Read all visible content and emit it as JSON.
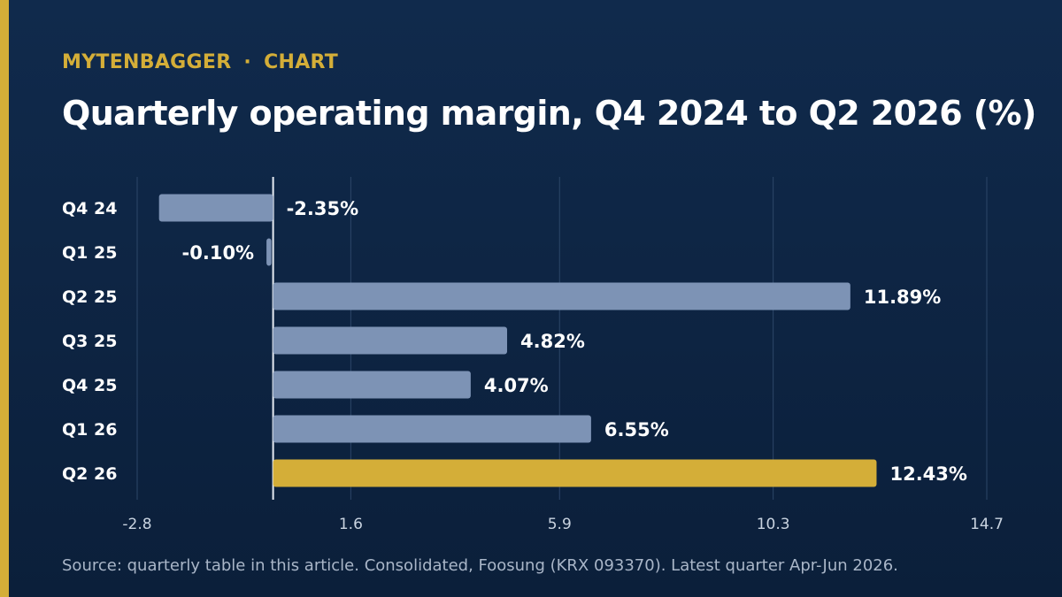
{
  "header": {
    "kicker_brand": "MYTENBAGGER",
    "kicker_separator": "·",
    "kicker_section": "CHART",
    "title": "Quarterly operating margin, Q4 2024 to Q2 2026 (%)"
  },
  "footer": {
    "source": "Source: quarterly table in this article. Consolidated, Foosung (KRX 093370). Latest quarter Apr-Jun 2026."
  },
  "colors": {
    "accent": "#d4ae38",
    "bar": "#7d93b5",
    "highlight": "#d4ae38",
    "grid": "#2c4668",
    "zero_line": "#e6ebf2",
    "tick_text": "#c9d3e0"
  },
  "chart_data": {
    "type": "bar",
    "orientation": "horizontal",
    "categories": [
      "Q4 24",
      "Q1 25",
      "Q2 25",
      "Q3 25",
      "Q4 25",
      "Q1 26",
      "Q2 26"
    ],
    "values": [
      -2.35,
      -0.1,
      11.89,
      4.82,
      4.07,
      6.55,
      12.43
    ],
    "value_labels": [
      "-2.35%",
      "-0.10%",
      "11.89%",
      "4.82%",
      "4.07%",
      "6.55%",
      "12.43%"
    ],
    "highlight_index": 6,
    "xlim": [
      -2.8,
      14.7
    ],
    "xticks": [
      -2.8,
      1.6,
      5.9,
      10.3,
      14.7
    ],
    "xtick_labels": [
      "-2.8",
      "1.6",
      "5.9",
      "10.3",
      "14.7"
    ],
    "grid": true
  }
}
